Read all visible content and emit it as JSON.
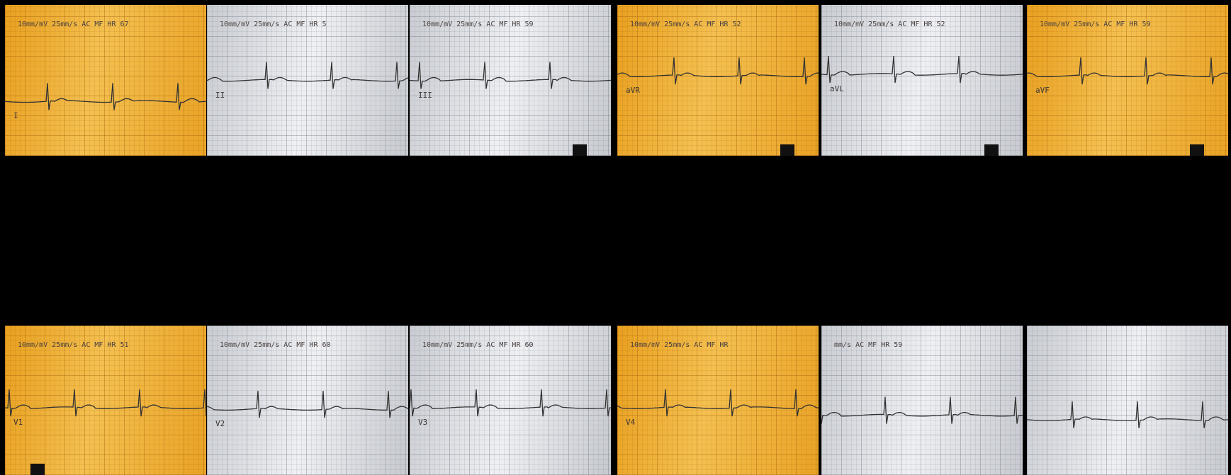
{
  "panels": [
    {
      "header": "10mm/mV 25mm/s AC MF HR 67",
      "lead": "I"
    },
    {
      "header": "10mm/mV 25mm/s AC MF HR 5",
      "lead": "II"
    },
    {
      "header": "10mm/mV 25mm/s AC MF HR 59",
      "lead": "III"
    },
    {
      "header": "10mm/mV 25mm/s AC MF HR 52",
      "lead": "aVR"
    },
    {
      "header": "10mm/mV 25mm/s AC MF HR 52",
      "lead": "aVL"
    },
    {
      "header": "10mm/mV 25mm/s AC MF HR 59",
      "lead": "aVF"
    },
    {
      "header": "10mm/mV 25mm/s AC MF HR 51",
      "lead": "V1"
    },
    {
      "header": "10mm/mV 25mm/s AC MF HR 60",
      "lead": "V2"
    },
    {
      "header": "10mm/mV 25mm/s AC MF HR 60",
      "lead": "V3"
    },
    {
      "header": "10mm/mV 25mm/s AC MF HR",
      "lead": "V4"
    },
    {
      "header": "mm/s AC MF HR 59"
    },
    {}
  ]
}
